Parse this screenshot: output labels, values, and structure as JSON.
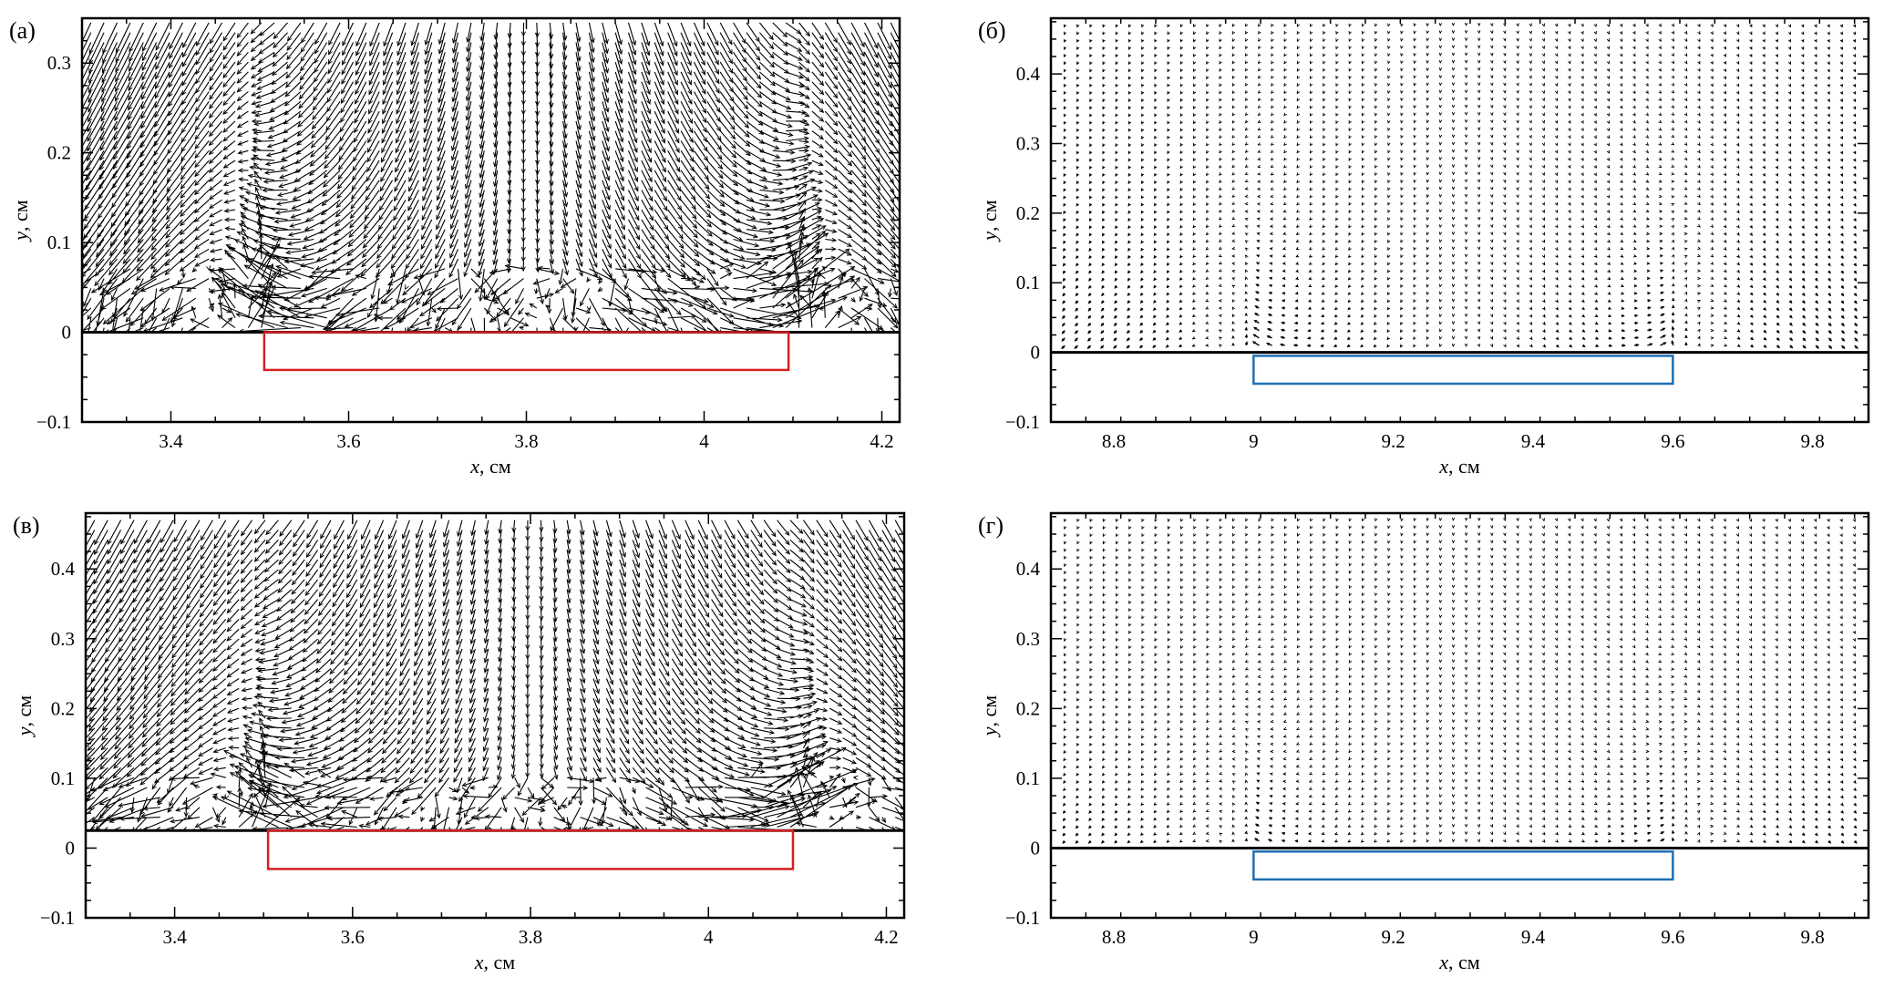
{
  "figure": {
    "panels": [
      {
        "label": "(а)",
        "xlabel_var": "x",
        "xlabel_unit": ", см",
        "ylabel_var": "y",
        "ylabel_unit": ", см",
        "xticks": [
          "3.4",
          "3.6",
          "3.8",
          "4",
          "4.2"
        ],
        "yticks": [
          "0.3",
          "0.2",
          "0.1",
          "0",
          "−0.1"
        ],
        "rect_color": "#d62020",
        "vector_style": "long"
      },
      {
        "label": "(б)",
        "xlabel_var": "x",
        "xlabel_unit": ", см",
        "ylabel_var": "y",
        "ylabel_unit": ", см",
        "xticks": [
          "8.8",
          "9",
          "9.2",
          "9.4",
          "9.6",
          "9.8"
        ],
        "yticks": [
          "0.4",
          "0.3",
          "0.2",
          "0.1",
          "0",
          "−0.1"
        ],
        "rect_color": "#1f6fb5",
        "vector_style": "short"
      },
      {
        "label": "(в)",
        "xlabel_var": "x",
        "xlabel_unit": ", см",
        "ylabel_var": "y",
        "ylabel_unit": ", см",
        "xticks": [
          "3.4",
          "3.6",
          "3.8",
          "4",
          "4.2"
        ],
        "yticks": [
          "0.4",
          "0.3",
          "0.2",
          "0.1",
          "0",
          "−0.1"
        ],
        "rect_color": "#d62020",
        "vector_style": "long"
      },
      {
        "label": "(г)",
        "xlabel_var": "x",
        "xlabel_unit": ", см",
        "ylabel_var": "y",
        "ylabel_unit": ", см",
        "xticks": [
          "8.8",
          "9",
          "9.2",
          "9.4",
          "9.6",
          "9.8"
        ],
        "yticks": [
          "0.4",
          "0.3",
          "0.2",
          "0.1",
          "0",
          "−0.1"
        ],
        "rect_color": "#1f6fb5",
        "vector_style": "short"
      }
    ]
  },
  "chart_data": [
    {
      "type": "quiver",
      "panel": "(а)",
      "xlabel": "x, см",
      "ylabel": "y, см",
      "xlim": [
        3.3,
        4.22
      ],
      "ylim": [
        -0.1,
        0.35
      ],
      "x_ticks": [
        3.4,
        3.6,
        3.8,
        4,
        4.2
      ],
      "y_ticks": [
        -0.1,
        0,
        0.1,
        0.2,
        0.3
      ],
      "wall_y": 0,
      "electrode": {
        "x0": 3.505,
        "x1": 4.095,
        "y0": -0.042,
        "y1": 0
      },
      "field": {
        "x_range": [
          3.31,
          4.21
        ],
        "x_count": 62,
        "y_range": [
          0.005,
          0.345
        ],
        "y_count": 32,
        "jets_x": [
          3.505,
          4.095
        ],
        "centre_x": 3.8,
        "max_arrow": 0.09
      }
    },
    {
      "type": "quiver",
      "panel": "(б)",
      "xlabel": "x, см",
      "ylabel": "y, см",
      "xlim": [
        8.71,
        9.88
      ],
      "ylim": [
        -0.1,
        0.48
      ],
      "x_ticks": [
        8.8,
        9,
        9.2,
        9.4,
        9.6,
        9.8
      ],
      "y_ticks": [
        -0.1,
        0,
        0.1,
        0.2,
        0.3,
        0.4
      ],
      "wall_y": 0,
      "electrode": {
        "x0": 9.0,
        "x1": 9.6,
        "y0": -0.045,
        "y1": -0.005
      },
      "field": {
        "x_range": [
          8.73,
          9.86
        ],
        "x_count": 62,
        "y_range": [
          0.01,
          0.47
        ],
        "y_count": 44,
        "jets_x": [
          9.0,
          9.6
        ],
        "centre_x": 9.3,
        "max_arrow": 0.012
      }
    },
    {
      "type": "quiver",
      "panel": "(в)",
      "xlabel": "x, см",
      "ylabel": "y, см",
      "xlim": [
        3.3,
        4.22
      ],
      "ylim": [
        -0.1,
        0.48
      ],
      "x_ticks": [
        3.4,
        3.6,
        3.8,
        4,
        4.2
      ],
      "y_ticks": [
        -0.1,
        0,
        0.1,
        0.2,
        0.3,
        0.4
      ],
      "wall_y": 0.025,
      "electrode": {
        "x0": 3.505,
        "x1": 4.095,
        "y0": -0.03,
        "y1": 0.025
      },
      "field": {
        "x_range": [
          3.31,
          4.21
        ],
        "x_count": 62,
        "y_range": [
          0.03,
          0.47
        ],
        "y_count": 32,
        "jets_x": [
          3.505,
          4.095
        ],
        "centre_x": 3.8,
        "max_arrow": 0.09
      }
    },
    {
      "type": "quiver",
      "panel": "(г)",
      "xlabel": "x, см",
      "ylabel": "y, см",
      "xlim": [
        8.71,
        9.88
      ],
      "ylim": [
        -0.1,
        0.48
      ],
      "x_ticks": [
        8.8,
        9,
        9.2,
        9.4,
        9.6,
        9.8
      ],
      "y_ticks": [
        -0.1,
        0,
        0.1,
        0.2,
        0.3,
        0.4
      ],
      "wall_y": 0,
      "electrode": {
        "x0": 9.0,
        "x1": 9.6,
        "y0": -0.045,
        "y1": -0.005
      },
      "field": {
        "x_range": [
          8.73,
          9.86
        ],
        "x_count": 62,
        "y_range": [
          0.01,
          0.47
        ],
        "y_count": 44,
        "jets_x": [
          9.0,
          9.6
        ],
        "centre_x": 9.3,
        "max_arrow": 0.008
      }
    }
  ]
}
